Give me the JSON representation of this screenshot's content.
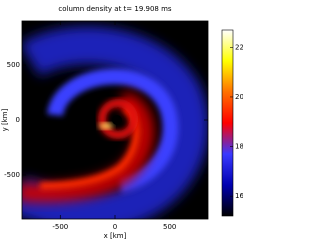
{
  "chart_data": {
    "type": "image",
    "title": "column density at t= 19.908 ms",
    "xlabel": "x [km]",
    "ylabel": "y [km]",
    "xlim": [
      -850,
      850
    ],
    "ylim": [
      -900,
      900
    ],
    "xticks": [
      -500,
      0,
      500
    ],
    "yticks": [
      -500,
      0,
      500
    ],
    "colorbar": {
      "lim": [
        15.2,
        22.7
      ],
      "ticks": [
        16,
        18,
        20,
        22
      ],
      "colors": [
        "#000000",
        "#0000b0",
        "#3a3aff",
        "#ff0000",
        "#ff7000",
        "#ffff00",
        "#ffffff"
      ]
    }
  }
}
